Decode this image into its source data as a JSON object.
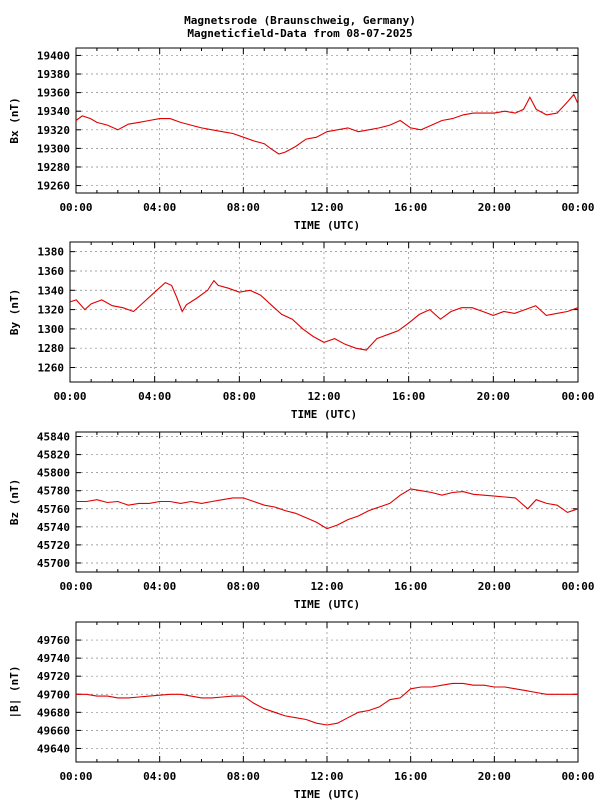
{
  "header": {
    "title_line1": "Magnetsrode (Braunschweig, Germany)",
    "title_line2": "Magneticfield-Data from 08-07-2025"
  },
  "colors": {
    "series": "#e00000",
    "grid": "#888888",
    "axis": "#000000"
  },
  "chart_data": [
    {
      "type": "line",
      "xlabel": "TIME (UTC)",
      "ylabel": "Bx (nT)",
      "xlim": [
        0,
        24
      ],
      "ylim": [
        19252,
        19408
      ],
      "xticks": [
        "00:00",
        "04:00",
        "08:00",
        "12:00",
        "16:00",
        "20:00",
        "00:00"
      ],
      "yticks": [
        19260,
        19280,
        19300,
        19320,
        19340,
        19360,
        19380,
        19400
      ],
      "grid": true,
      "x": [
        0,
        0.3,
        0.7,
        1.0,
        1.5,
        2.0,
        2.5,
        3.0,
        3.5,
        4.0,
        4.5,
        5.0,
        5.5,
        6.0,
        6.5,
        7.0,
        7.5,
        8.0,
        8.5,
        9.0,
        9.3,
        9.7,
        10.0,
        10.5,
        11.0,
        11.5,
        12.0,
        12.5,
        13.0,
        13.5,
        14.0,
        14.5,
        15.0,
        15.5,
        16.0,
        16.5,
        17.0,
        17.5,
        18.0,
        18.5,
        19.0,
        19.5,
        20.0,
        20.5,
        21.0,
        21.4,
        21.7,
        22.0,
        22.5,
        23.0,
        23.5,
        23.8,
        24.0
      ],
      "values": [
        19330,
        19335,
        19332,
        19328,
        19325,
        19320,
        19326,
        19328,
        19330,
        19332,
        19332,
        19328,
        19325,
        19322,
        19320,
        19318,
        19316,
        19312,
        19308,
        19305,
        19300,
        19294,
        19296,
        19302,
        19310,
        19312,
        19318,
        19320,
        19322,
        19318,
        19320,
        19322,
        19325,
        19330,
        19322,
        19320,
        19325,
        19330,
        19332,
        19336,
        19338,
        19338,
        19338,
        19340,
        19338,
        19342,
        19355,
        19342,
        19336,
        19338,
        19350,
        19358,
        19348
      ]
    },
    {
      "type": "line",
      "xlabel": "TIME (UTC)",
      "ylabel": "By (nT)",
      "xlim": [
        0,
        24
      ],
      "ylim": [
        1245,
        1390
      ],
      "xticks": [
        "00:00",
        "04:00",
        "08:00",
        "12:00",
        "16:00",
        "20:00",
        "00:00"
      ],
      "yticks": [
        1260,
        1280,
        1300,
        1320,
        1340,
        1360,
        1380
      ],
      "grid": true,
      "x": [
        0,
        0.3,
        0.7,
        1.0,
        1.5,
        2.0,
        2.5,
        3.0,
        3.5,
        4.0,
        4.5,
        4.8,
        5.0,
        5.3,
        5.5,
        6.0,
        6.5,
        6.8,
        7.0,
        7.5,
        8.0,
        8.5,
        9.0,
        9.5,
        10.0,
        10.5,
        11.0,
        11.5,
        12.0,
        12.5,
        13.0,
        13.5,
        14.0,
        14.5,
        15.0,
        15.5,
        16.0,
        16.5,
        17.0,
        17.5,
        18.0,
        18.5,
        19.0,
        19.5,
        20.0,
        20.5,
        21.0,
        21.5,
        22.0,
        22.5,
        23.0,
        23.5,
        24.0
      ],
      "values": [
        1328,
        1330,
        1320,
        1326,
        1330,
        1324,
        1322,
        1318,
        1328,
        1338,
        1348,
        1345,
        1335,
        1318,
        1325,
        1332,
        1340,
        1350,
        1345,
        1342,
        1338,
        1340,
        1335,
        1325,
        1315,
        1310,
        1300,
        1292,
        1286,
        1290,
        1284,
        1280,
        1278,
        1290,
        1294,
        1298,
        1306,
        1315,
        1320,
        1310,
        1318,
        1322,
        1322,
        1318,
        1314,
        1318,
        1316,
        1320,
        1324,
        1314,
        1316,
        1318,
        1322
      ]
    },
    {
      "type": "line",
      "xlabel": "TIME (UTC)",
      "ylabel": "Bz (nT)",
      "xlim": [
        0,
        24
      ],
      "ylim": [
        45690,
        45845
      ],
      "xticks": [
        "00:00",
        "04:00",
        "08:00",
        "12:00",
        "16:00",
        "20:00",
        "00:00"
      ],
      "yticks": [
        45700,
        45720,
        45740,
        45760,
        45780,
        45800,
        45820,
        45840
      ],
      "grid": true,
      "x": [
        0,
        0.5,
        1.0,
        1.5,
        2.0,
        2.5,
        3.0,
        3.5,
        4.0,
        4.5,
        5.0,
        5.5,
        6.0,
        6.5,
        7.0,
        7.5,
        8.0,
        8.5,
        9.0,
        9.5,
        10.0,
        10.5,
        11.0,
        11.5,
        12.0,
        12.5,
        13.0,
        13.5,
        14.0,
        14.5,
        15.0,
        15.5,
        16.0,
        16.5,
        17.0,
        17.5,
        18.0,
        18.5,
        19.0,
        19.5,
        20.0,
        20.5,
        21.0,
        21.3,
        21.6,
        22.0,
        22.5,
        23.0,
        23.5,
        24.0
      ],
      "values": [
        45768,
        45768,
        45770,
        45767,
        45768,
        45764,
        45766,
        45766,
        45768,
        45768,
        45766,
        45768,
        45766,
        45768,
        45770,
        45772,
        45772,
        45768,
        45764,
        45762,
        45758,
        45755,
        45750,
        45745,
        45738,
        45742,
        45748,
        45752,
        45758,
        45762,
        45766,
        45775,
        45782,
        45780,
        45778,
        45775,
        45778,
        45779,
        45776,
        45775,
        45774,
        45773,
        45772,
        45766,
        45760,
        45770,
        45766,
        45764,
        45756,
        45760
      ]
    },
    {
      "type": "line",
      "xlabel": "TIME (UTC)",
      "ylabel": "|B| (nT)",
      "xlim": [
        0,
        24
      ],
      "ylim": [
        49625,
        49780
      ],
      "xticks": [
        "00:00",
        "04:00",
        "08:00",
        "12:00",
        "16:00",
        "20:00",
        "00:00"
      ],
      "yticks": [
        49640,
        49660,
        49680,
        49700,
        49720,
        49740,
        49760
      ],
      "grid": true,
      "x": [
        0,
        0.5,
        1.0,
        1.5,
        2.0,
        2.5,
        3.0,
        3.5,
        4.0,
        4.5,
        5.0,
        5.5,
        6.0,
        6.5,
        7.0,
        7.5,
        8.0,
        8.5,
        9.0,
        9.5,
        10.0,
        10.5,
        11.0,
        11.5,
        12.0,
        12.5,
        13.0,
        13.5,
        14.0,
        14.5,
        15.0,
        15.5,
        16.0,
        16.5,
        17.0,
        17.5,
        18.0,
        18.5,
        19.0,
        19.5,
        20.0,
        20.5,
        21.0,
        21.5,
        22.0,
        22.5,
        23.0,
        23.5,
        24.0
      ],
      "values": [
        49700,
        49700,
        49698,
        49698,
        49696,
        49696,
        49697,
        49698,
        49699,
        49700,
        49700,
        49698,
        49696,
        49696,
        49697,
        49698,
        49698,
        49690,
        49684,
        49680,
        49676,
        49674,
        49672,
        49668,
        49666,
        49668,
        49674,
        49680,
        49682,
        49686,
        49694,
        49696,
        49706,
        49708,
        49708,
        49710,
        49712,
        49712,
        49710,
        49710,
        49708,
        49708,
        49706,
        49704,
        49702,
        49700,
        49700,
        49700,
        49700
      ]
    }
  ]
}
